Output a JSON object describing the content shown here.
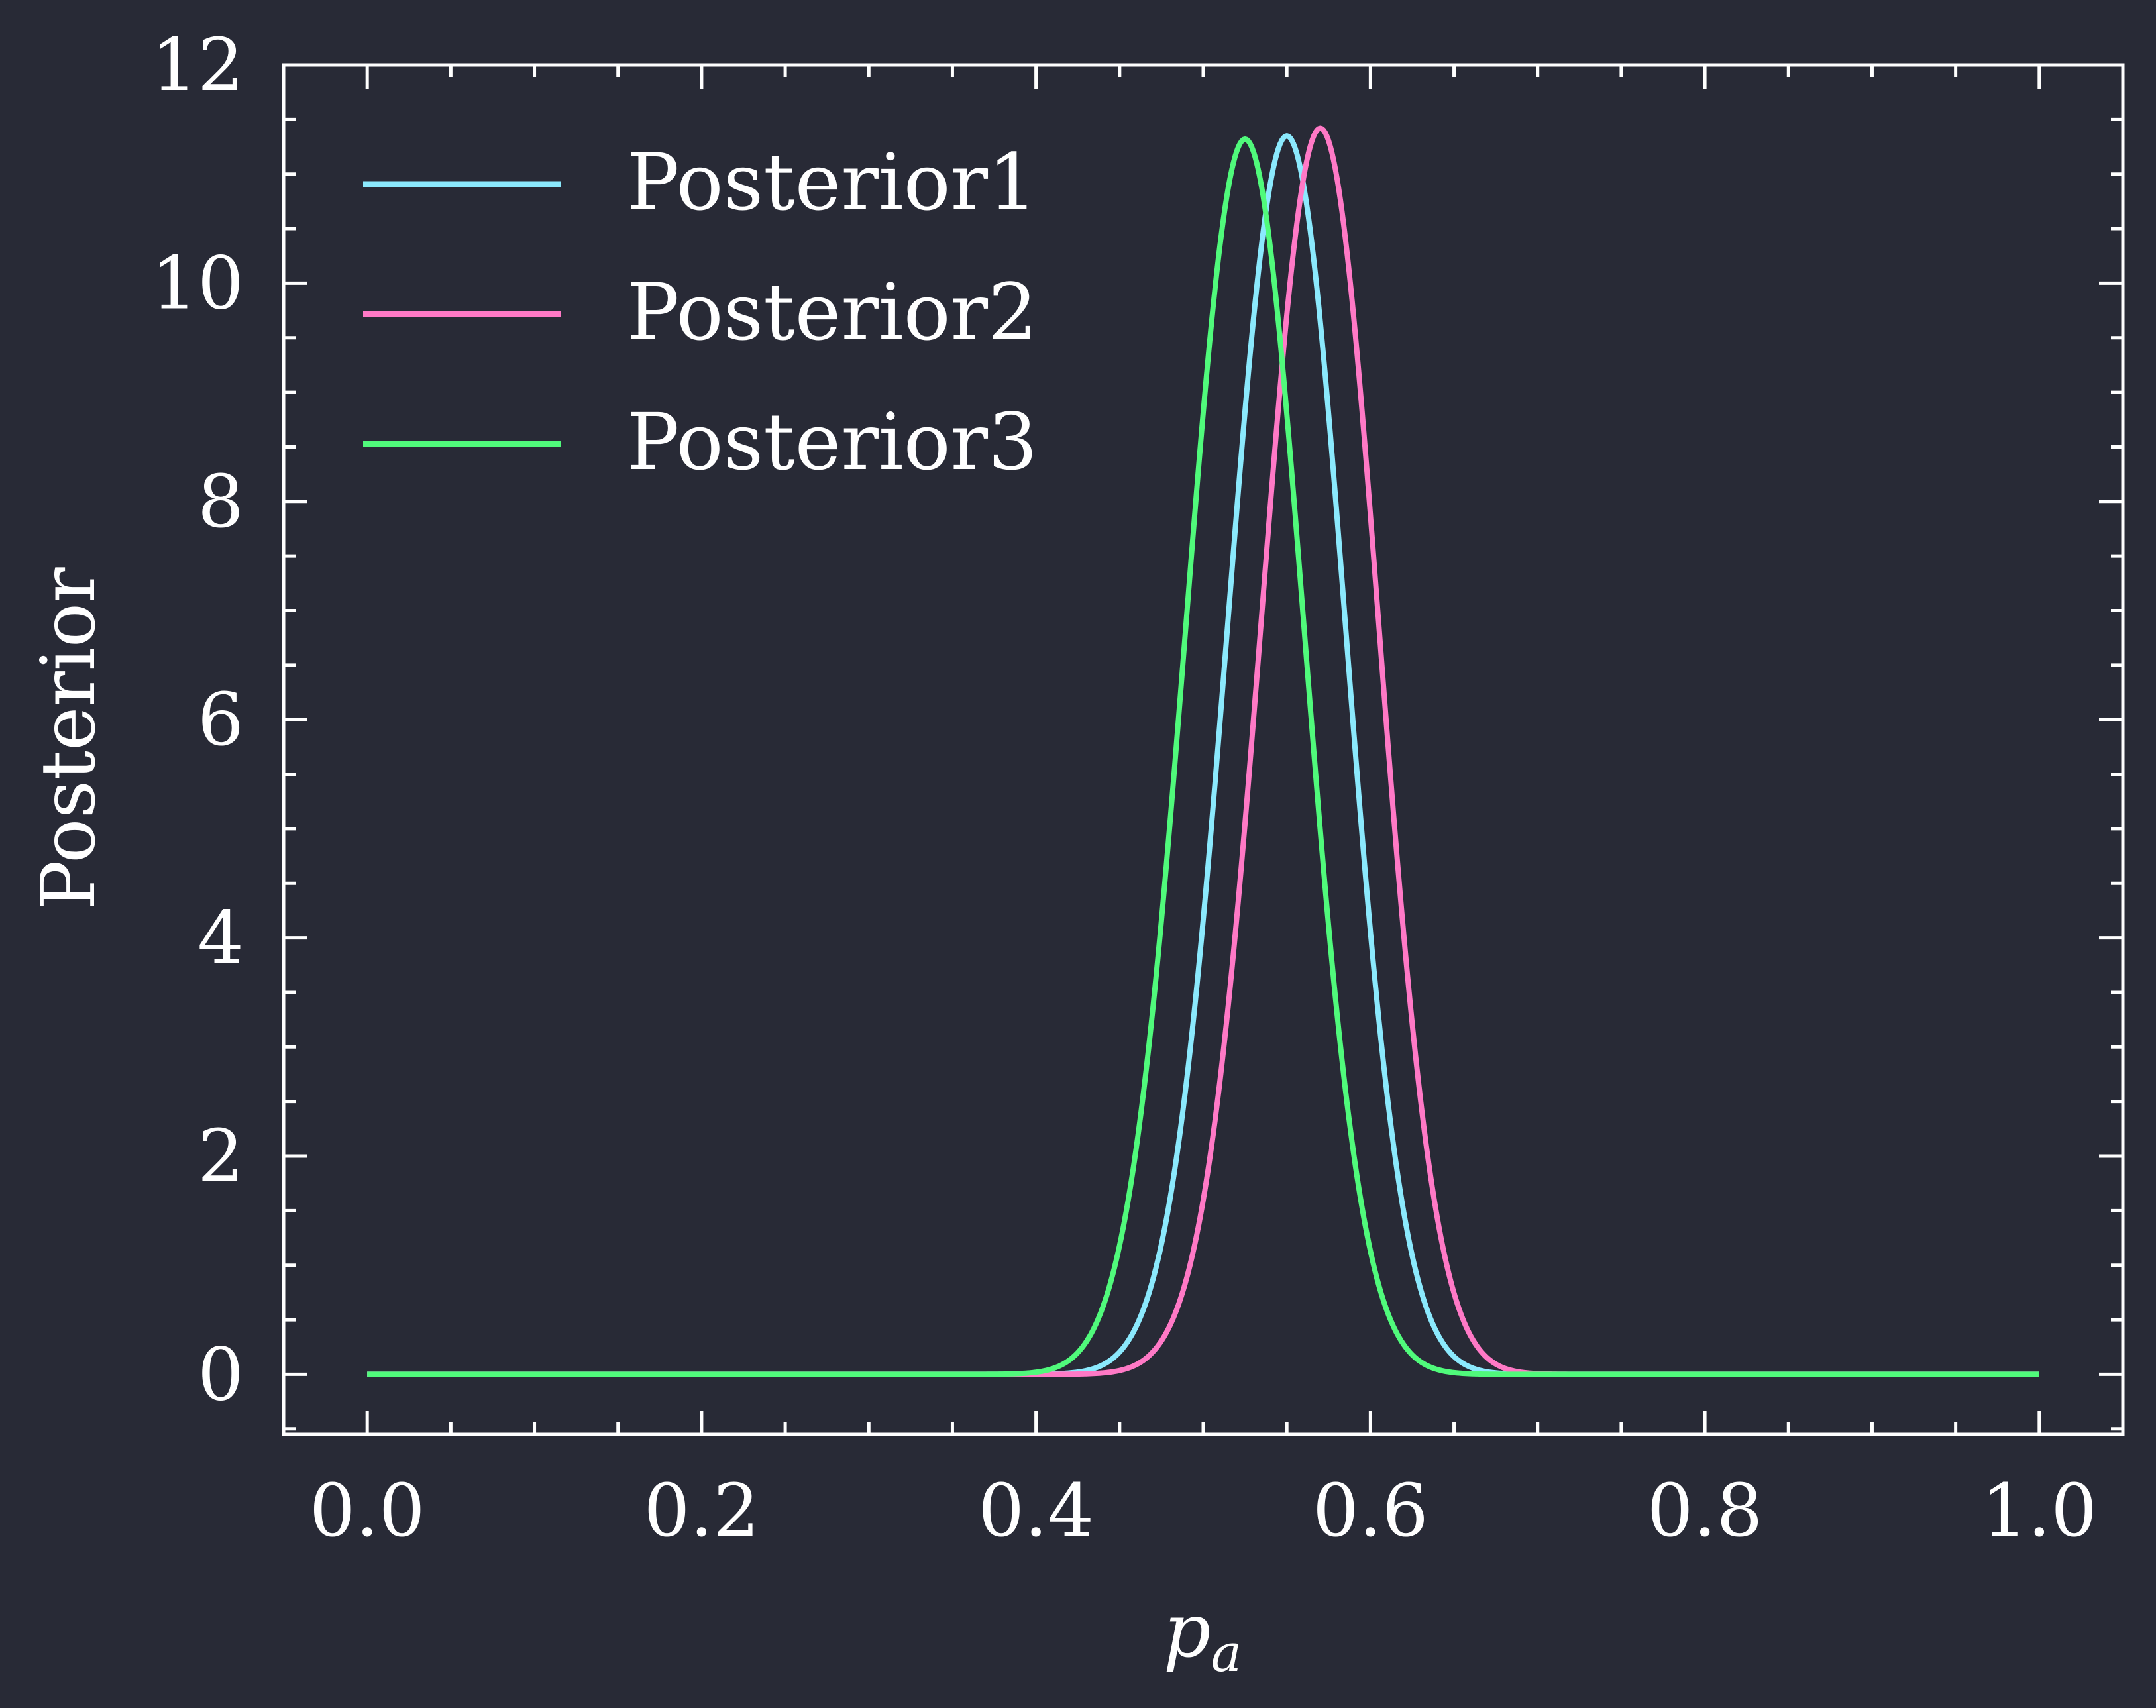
{
  "chart_data": {
    "type": "line",
    "title": "",
    "xlabel_base": "p",
    "xlabel_sub": "a",
    "ylabel": "Posterior",
    "xlim": [
      -0.05,
      1.05
    ],
    "ylim": [
      -0.55,
      12
    ],
    "x_ticks": [
      0.0,
      0.2,
      0.4,
      0.6,
      0.8,
      1.0
    ],
    "x_tick_labels": [
      "0.0",
      "0.2",
      "0.4",
      "0.6",
      "0.8",
      "1.0"
    ],
    "y_ticks": [
      0,
      2,
      4,
      6,
      8,
      10,
      12
    ],
    "y_tick_labels": [
      "0",
      "2",
      "4",
      "6",
      "8",
      "10",
      "12"
    ],
    "x_minor_step": 0.05,
    "y_minor_step": 0.5,
    "grid": false,
    "legend_position": "top-left",
    "background_color": "#282a36",
    "axis_color": "#ffffff",
    "series": [
      {
        "name": "Posterior1",
        "color": "#8be9fd",
        "curve": "beta",
        "alpha": 111,
        "beta": 91,
        "peak": 11.35,
        "mode": 0.55
      },
      {
        "name": "Posterior2",
        "color": "#ff79c6",
        "curve": "beta",
        "alpha": 115,
        "beta": 87,
        "peak": 11.42,
        "mode": 0.57
      },
      {
        "name": "Posterior3",
        "color": "#50fa7b",
        "curve": "beta",
        "alpha": 106,
        "beta": 96,
        "peak": 11.32,
        "mode": 0.525
      }
    ]
  }
}
